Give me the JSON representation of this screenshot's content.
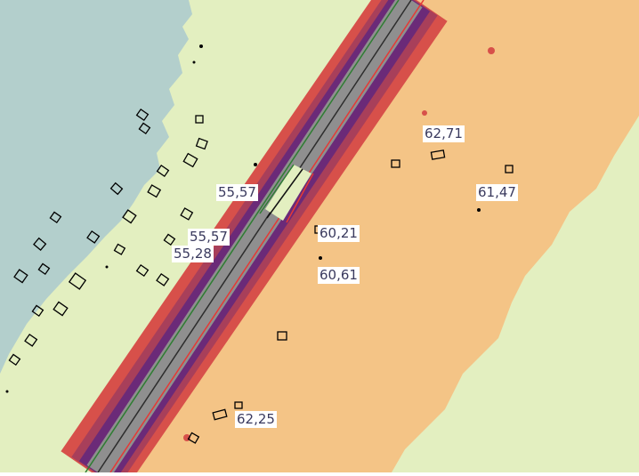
{
  "map": {
    "colors": {
      "water": "#b3cfcc",
      "light_green": "#e3efc0",
      "orange": "#f4c486",
      "red_zone": "#d7504a",
      "dark_red": "#a83f5a",
      "purple": "#6b2a78",
      "road_gray": "#8f8f8f",
      "center_line": "#2d2d2d"
    },
    "noise_labels": [
      {
        "text": "62,71"
      },
      {
        "text": "61,47"
      },
      {
        "text": "55,57"
      },
      {
        "text": "55,57"
      },
      {
        "text": "55,28"
      },
      {
        "text": "60,21"
      },
      {
        "text": "60,61"
      },
      {
        "text": "62,25"
      }
    ]
  }
}
